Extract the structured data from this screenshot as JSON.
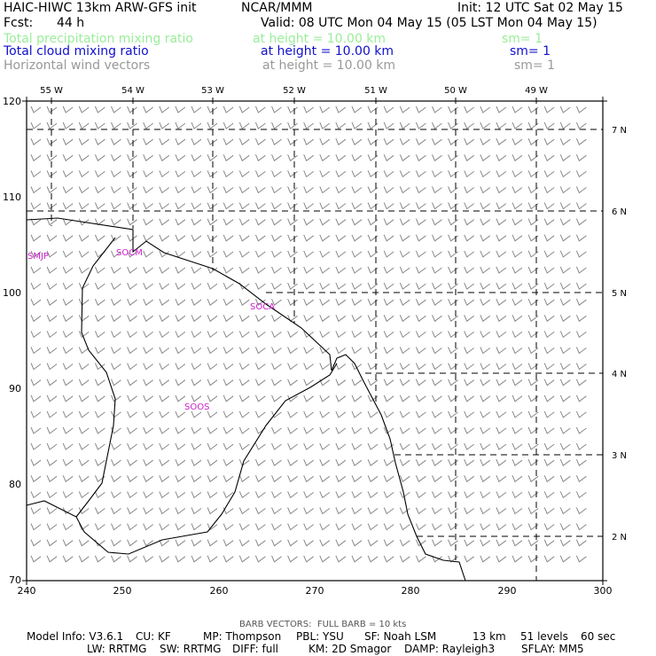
{
  "header": {
    "model": "HAIC-HIWC 13km ARW-GFS init",
    "org": "NCAR/MMM",
    "init": "Init: 12 UTC Sat 02 May 15",
    "fcst_label": "Fcst:",
    "fcst_value": "44 h",
    "valid": "Valid: 08 UTC Mon 04 May 15 (05 LST Mon 04 May 15)"
  },
  "fields": [
    {
      "name": "Total precipitation mixing ratio",
      "height": "at height = 10.00 km",
      "sm": "sm= 1",
      "color": "#99ee99"
    },
    {
      "name": "Total cloud mixing ratio",
      "height": "at height = 10.00 km",
      "sm": "sm= 1",
      "color": "#1010cc"
    },
    {
      "name": "Horizontal wind vectors",
      "height": "at height = 10.00 km",
      "sm": "sm= 1",
      "color": "#999999"
    }
  ],
  "map": {
    "lon_labels": [
      "55 W",
      "54 W",
      "53 W",
      "52 W",
      "51 W",
      "50 W",
      "49 W"
    ],
    "lat_labels": [
      "7 N",
      "6 N",
      "5 N",
      "4 N",
      "3 N",
      "2 N"
    ],
    "x_ticks": [
      "240",
      "250",
      "260",
      "270",
      "280",
      "290",
      "300"
    ],
    "y_ticks": [
      "120",
      "110",
      "100",
      "90",
      "80",
      "70"
    ],
    "region_labels": [
      "SMJP",
      "SOCM",
      "SOCA",
      "SOOS"
    ],
    "label_color": "#cc22cc",
    "barb_color": "#888888"
  },
  "footer": {
    "barb_note": "BARB VECTORS:  FULL BARB = 10 kts",
    "line1": [
      "Model Info: V3.6.1",
      "CU: KF",
      "MP: Thompson",
      "PBL: YSU",
      "SF: Noah LSM",
      "13 km",
      "51 levels",
      "60 sec"
    ],
    "line2": [
      "LW: RRTMG",
      "SW: RRTMG",
      "DIFF: full",
      "KM: 2D Smagor",
      "DAMP: Rayleigh3",
      "SFLAY: MM5"
    ]
  }
}
